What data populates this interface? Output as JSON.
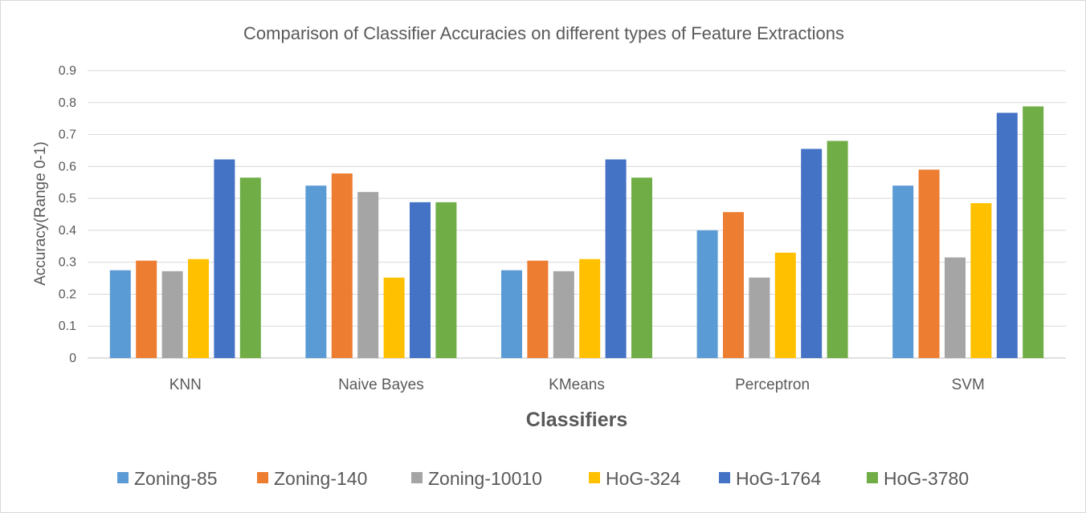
{
  "chart_data": {
    "type": "bar",
    "title": "Comparison of Classifier Accuracies on different types of Feature Extractions",
    "xlabel": "Classifiers",
    "ylabel": "Accuracy(Range 0-1)",
    "ylim": [
      0,
      0.9
    ],
    "yticks": [
      "0",
      "0.1",
      "0.2",
      "0.3",
      "0.4",
      "0.5",
      "0.6",
      "0.7",
      "0.8",
      "0.9"
    ],
    "grid": "horizontal",
    "legend_position": "bottom",
    "categories": [
      "KNN",
      "Naive Bayes",
      "KMeans",
      "Perceptron",
      "SVM"
    ],
    "series": [
      {
        "name": "Zoning-85",
        "color": "#5b9bd5",
        "values": [
          0.275,
          0.54,
          0.275,
          0.4,
          0.54
        ]
      },
      {
        "name": "Zoning-140",
        "color": "#ed7d31",
        "values": [
          0.305,
          0.578,
          0.305,
          0.457,
          0.59
        ]
      },
      {
        "name": "Zoning-10010",
        "color": "#a5a5a5",
        "values": [
          0.272,
          0.52,
          0.272,
          0.252,
          0.315
        ]
      },
      {
        "name": "HoG-324",
        "color": "#ffc000",
        "values": [
          0.31,
          0.252,
          0.31,
          0.33,
          0.485
        ]
      },
      {
        "name": "HoG-1764",
        "color": "#4472c4",
        "values": [
          0.622,
          0.488,
          0.622,
          0.655,
          0.768
        ]
      },
      {
        "name": "HoG-3780",
        "color": "#70ad47",
        "values": [
          0.565,
          0.488,
          0.565,
          0.68,
          0.788
        ]
      }
    ]
  }
}
